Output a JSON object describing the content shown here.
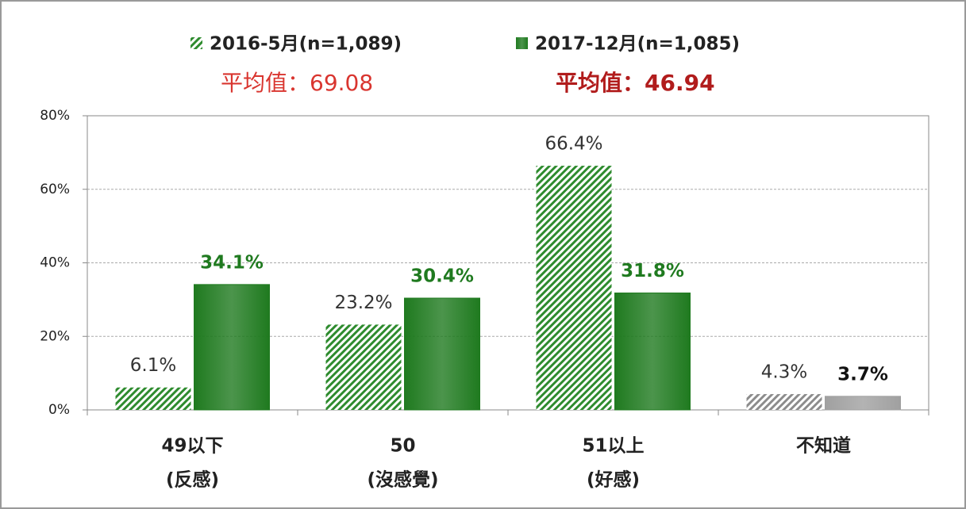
{
  "chart_data": {
    "type": "bar",
    "legend": "top",
    "annotations": [
      "平均值：69.08",
      "平均值：46.94"
    ],
    "categories": [
      [
        "49以下",
        "(反感)"
      ],
      [
        "50",
        "(沒感覺)"
      ],
      [
        "51以上",
        "(好感)"
      ],
      [
        "不知道"
      ]
    ],
    "series": [
      {
        "name": "2016-5月(n=1,089)",
        "color": "#2e8b2e",
        "pattern": "hatched",
        "colors": [
          "#2e8b2e",
          "#2e8b2e",
          "#2e8b2e",
          "#8c8c8c"
        ],
        "values": [
          6.1,
          23.2,
          66.4,
          4.3
        ],
        "value_labels": [
          "6.1%",
          "23.2%",
          "66.4%",
          "4.3%"
        ]
      },
      {
        "name": "2017-12月(n=1,085)",
        "color": "#1f7a1f",
        "pattern": "solid",
        "colors": [
          "#1f7a1f",
          "#1f7a1f",
          "#1f7a1f",
          "#a0a0a0"
        ],
        "values": [
          34.1,
          30.4,
          31.8,
          3.7
        ],
        "value_labels": [
          "34.1%",
          "30.4%",
          "31.8%",
          "3.7%"
        ]
      }
    ],
    "ylim": [
      0,
      80
    ],
    "yticks": [
      {
        "value": 0,
        "label": "0%"
      },
      {
        "value": 20,
        "label": "20%"
      },
      {
        "value": 40,
        "label": "40%"
      },
      {
        "value": 60,
        "label": "60%"
      },
      {
        "value": 80,
        "label": "80%"
      }
    ],
    "grid": true
  }
}
